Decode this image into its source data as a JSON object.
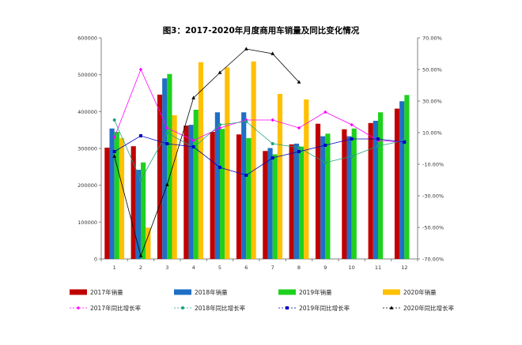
{
  "chart_data": {
    "type": "bar",
    "title": "图3：2017-2020年月度商用车销量及同比变化情况",
    "categories": [
      "1",
      "2",
      "3",
      "4",
      "5",
      "6",
      "7",
      "8",
      "9",
      "10",
      "11",
      "12"
    ],
    "y_left": {
      "min": 0,
      "max": 600000,
      "step": 100000,
      "ticks": [
        "0",
        "100000",
        "200000",
        "300000",
        "400000",
        "500000",
        "600000"
      ]
    },
    "y_right": {
      "min": -70,
      "max": 70,
      "step": 20,
      "ticks": [
        "-70.00%",
        "-50.00%",
        "-30.00%",
        "-10.00%",
        "10.00%",
        "30.00%",
        "50.00%",
        "70.00%"
      ]
    },
    "bar_series": [
      {
        "name": "2017年销量",
        "color": "#C00000",
        "values": [
          302000,
          306000,
          446000,
          362000,
          345000,
          338000,
          293000,
          311000,
          367000,
          352000,
          369000,
          408000
        ]
      },
      {
        "name": "2018年销量",
        "color": "#1F6FC5",
        "values": [
          354000,
          242000,
          490000,
          364000,
          398000,
          398000,
          301000,
          313000,
          333000,
          333000,
          375000,
          428000
        ]
      },
      {
        "name": "2019年销量",
        "color": "#1FD11F",
        "values": [
          345000,
          262000,
          502000,
          405000,
          353000,
          328000,
          284000,
          305000,
          340000,
          354000,
          398000,
          445000
        ]
      },
      {
        "name": "2020年销量",
        "color": "#FFC000",
        "values": [
          328000,
          85000,
          390000,
          534000,
          520000,
          536000,
          448000,
          433000,
          null,
          null,
          null,
          null
        ]
      }
    ],
    "line_series": [
      {
        "name": "2017年同比增长率",
        "color": "#FF00FF",
        "marker": "diamond",
        "values": [
          7,
          50,
          13,
          5,
          13,
          18,
          18,
          13,
          23,
          15,
          5,
          4
        ]
      },
      {
        "name": "2018年同比增长率",
        "color": "#20A080",
        "marker": "circle",
        "values": [
          18,
          -20,
          10,
          0.5,
          15,
          17,
          3,
          0.5,
          -9,
          -5,
          1.5,
          5
        ]
      },
      {
        "name": "2019年同比增长率",
        "color": "#0000C0",
        "marker": "square",
        "values": [
          -2,
          8,
          3,
          1,
          -12,
          -17,
          -6,
          -2,
          2,
          6,
          6,
          4
        ]
      },
      {
        "name": "2020年同比增长率",
        "color": "#000000",
        "marker": "triangle",
        "values": [
          -5,
          -68,
          -23,
          32,
          48,
          63,
          60,
          42,
          null,
          null,
          null,
          null
        ]
      }
    ],
    "legend_position": "bottom",
    "grid": false
  }
}
